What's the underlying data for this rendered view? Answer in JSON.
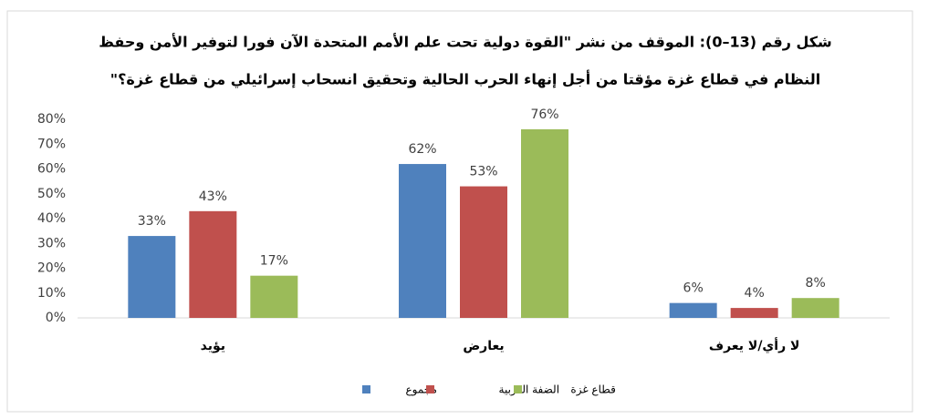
{
  "chart_data": {
    "type": "bar",
    "title": [
      "شكل رقم (13–0): الموقف من نشر \"القوة دولية تحت علم الأمم المتحدة الآن فورا لتوفير الأمن وحفظ",
      "النظام في قطاع غزة مؤقتا من أجل إنهاء الحرب الحالية وتحقيق انسحاب إسرائيلي من قطاع غزة؟\""
    ],
    "categories": [
      "يؤيد",
      "يعارض",
      "لا رأي/لا يعرف"
    ],
    "series": [
      {
        "name": "مجموع",
        "color": "#4f81bd",
        "values": [
          33,
          62,
          6
        ],
        "value_labels": [
          "33%",
          "62%",
          "6%"
        ]
      },
      {
        "name": "الضفة الغربية",
        "color": "#c0504d",
        "values": [
          43,
          53,
          4
        ],
        "value_labels": [
          "43%",
          "53%",
          "4%"
        ]
      },
      {
        "name": "قطاع غزة",
        "color": "#9bbb59",
        "values": [
          17,
          76,
          8
        ],
        "value_labels": [
          "17%",
          "76%",
          "8%"
        ]
      }
    ],
    "ylim": [
      0,
      80
    ],
    "yticks": [
      {
        "value": 0,
        "label": "0%"
      },
      {
        "value": 10,
        "label": "10%"
      },
      {
        "value": 20,
        "label": "20%"
      },
      {
        "value": 30,
        "label": "30%"
      },
      {
        "value": 40,
        "label": "40%"
      },
      {
        "value": 50,
        "label": "50%"
      },
      {
        "value": 60,
        "label": "60%"
      },
      {
        "value": 70,
        "label": "70%"
      },
      {
        "value": 80,
        "label": "80%"
      }
    ],
    "grid": false
  }
}
